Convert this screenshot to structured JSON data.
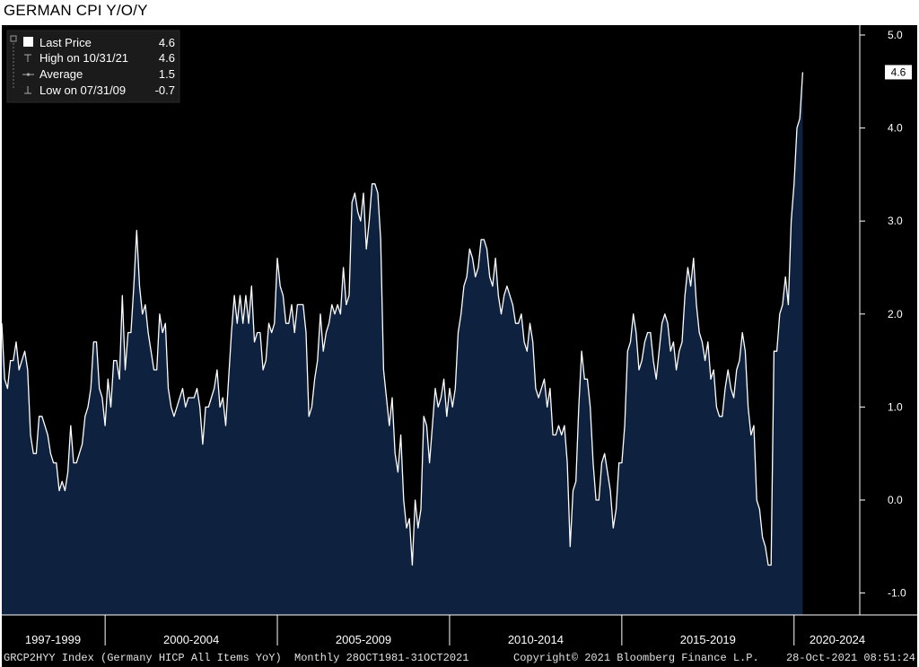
{
  "title": "GERMAN CPI Y/O/Y",
  "legend": {
    "rows": [
      {
        "label": "Last Price",
        "value": "4.6"
      },
      {
        "label": "High on 10/31/21",
        "value": "4.6"
      },
      {
        "label": "Average",
        "value": "1.5"
      },
      {
        "label": "Low on 07/31/09",
        "value": "-0.7"
      }
    ]
  },
  "last_value_tag": "4.6",
  "footer": {
    "ticker": "GRCP2HYY Index (Germany HICP All Items YoY)",
    "freq": "Monthly 28OCT1981-31OCT2021",
    "copyright": "Copyright© 2021 Bloomberg Finance L.P.",
    "timestamp": "28-Oct-2021 08:51:24"
  },
  "colors": {
    "line": "#ffffff",
    "fill": "#0e2240",
    "background": "#000000"
  },
  "chart_data": {
    "type": "area",
    "title": "GERMAN CPI Y/O/Y",
    "xlabel": "",
    "ylabel": "",
    "y_tick_labels": [
      "5.0",
      "4.0",
      "3.0",
      "2.0",
      "1.0",
      "0.0",
      "-1.0"
    ],
    "y_ticks": [
      5,
      4,
      3,
      2,
      1,
      0,
      -1
    ],
    "ylim": [
      -1.2,
      5.2
    ],
    "xlim": [
      1997.0,
      2021.83
    ],
    "x_tick_labels": [
      "1997-1999",
      "2000-2004",
      "2005-2009",
      "2010-2014",
      "2015-2019",
      "2020-2024"
    ],
    "x_tick_centers": [
      1998.5,
      2002.5,
      2007.5,
      2012.5,
      2017.5,
      2022.5
    ],
    "x_dividers": [
      2000.0,
      2005.0,
      2010.0,
      2015.0,
      2020.0
    ],
    "grid": false,
    "legend_position": "top-left",
    "series": [
      {
        "name": "Last Price",
        "x_start": 1997.0,
        "x_step": 0.0833333,
        "values": [
          1.9,
          1.3,
          1.2,
          1.5,
          1.5,
          1.7,
          1.4,
          1.5,
          1.6,
          1.4,
          0.7,
          0.5,
          0.5,
          0.9,
          0.9,
          0.8,
          0.7,
          0.5,
          0.4,
          0.4,
          0.1,
          0.2,
          0.1,
          0.3,
          0.8,
          0.4,
          0.4,
          0.5,
          0.6,
          0.9,
          1.0,
          1.2,
          1.7,
          1.7,
          1.2,
          1.1,
          0.8,
          1.3,
          1.0,
          1.5,
          1.5,
          1.3,
          2.2,
          1.4,
          1.8,
          1.8,
          2.3,
          2.9,
          2.3,
          2.0,
          2.1,
          1.8,
          1.6,
          1.4,
          1.4,
          2.0,
          1.8,
          1.9,
          1.2,
          1.0,
          0.9,
          1.0,
          1.1,
          1.2,
          1.0,
          1.1,
          1.1,
          1.1,
          1.2,
          1.0,
          0.6,
          1.0,
          1.0,
          1.1,
          1.2,
          1.4,
          1.0,
          1.1,
          0.8,
          1.3,
          1.8,
          2.2,
          1.9,
          2.2,
          1.9,
          2.2,
          1.9,
          2.3,
          1.7,
          1.8,
          1.8,
          1.4,
          1.5,
          1.9,
          1.8,
          1.9,
          2.6,
          2.3,
          2.2,
          1.9,
          1.9,
          2.1,
          1.8,
          2.1,
          2.1,
          2.1,
          1.8,
          0.9,
          1.0,
          1.3,
          1.5,
          2.0,
          1.6,
          1.8,
          1.9,
          2.1,
          2.0,
          2.1,
          2.0,
          2.5,
          2.1,
          2.2,
          3.2,
          3.3,
          3.1,
          3.0,
          3.3,
          2.7,
          3.0,
          3.4,
          3.4,
          3.3,
          2.8,
          1.4,
          1.1,
          0.8,
          1.1,
          0.5,
          0.3,
          0.7,
          0.0,
          -0.3,
          -0.2,
          -0.7,
          0.0,
          -0.3,
          -0.1,
          0.9,
          0.8,
          0.4,
          0.8,
          1.2,
          1.0,
          1.1,
          1.3,
          0.9,
          1.2,
          1.0,
          1.2,
          1.8,
          2.0,
          2.3,
          2.4,
          2.7,
          2.6,
          2.4,
          2.5,
          2.8,
          2.8,
          2.7,
          2.4,
          2.3,
          2.6,
          2.2,
          2.0,
          2.2,
          2.3,
          2.2,
          2.1,
          1.9,
          1.9,
          2.0,
          1.7,
          1.6,
          1.9,
          1.7,
          1.2,
          1.1,
          1.2,
          1.3,
          1.0,
          1.2,
          0.7,
          0.7,
          0.8,
          0.7,
          0.8,
          0.4,
          -0.5,
          0.1,
          0.2,
          1.0,
          1.6,
          1.3,
          1.3,
          1.0,
          0.4,
          0.0,
          0.0,
          0.4,
          0.5,
          0.3,
          0.1,
          -0.3,
          -0.1,
          0.4,
          0.4,
          0.8,
          1.6,
          1.7,
          2.0,
          1.8,
          1.4,
          1.5,
          1.7,
          1.8,
          1.8,
          1.5,
          1.3,
          1.6,
          1.9,
          2.0,
          1.9,
          1.6,
          1.7,
          1.4,
          1.6,
          1.7,
          2.2,
          2.5,
          2.3,
          2.6,
          2.1,
          1.8,
          1.7,
          1.5,
          1.7,
          1.3,
          1.4,
          1.0,
          0.9,
          0.9,
          1.2,
          1.4,
          1.2,
          1.1,
          1.4,
          1.5,
          1.8,
          1.6,
          1.0,
          0.7,
          0.8,
          0.0,
          -0.1,
          -0.4,
          -0.5,
          -0.7,
          -0.7,
          1.6,
          1.6,
          2.0,
          2.1,
          2.4,
          2.1,
          3.0,
          3.4,
          4.0,
          4.1,
          4.6
        ]
      }
    ]
  }
}
